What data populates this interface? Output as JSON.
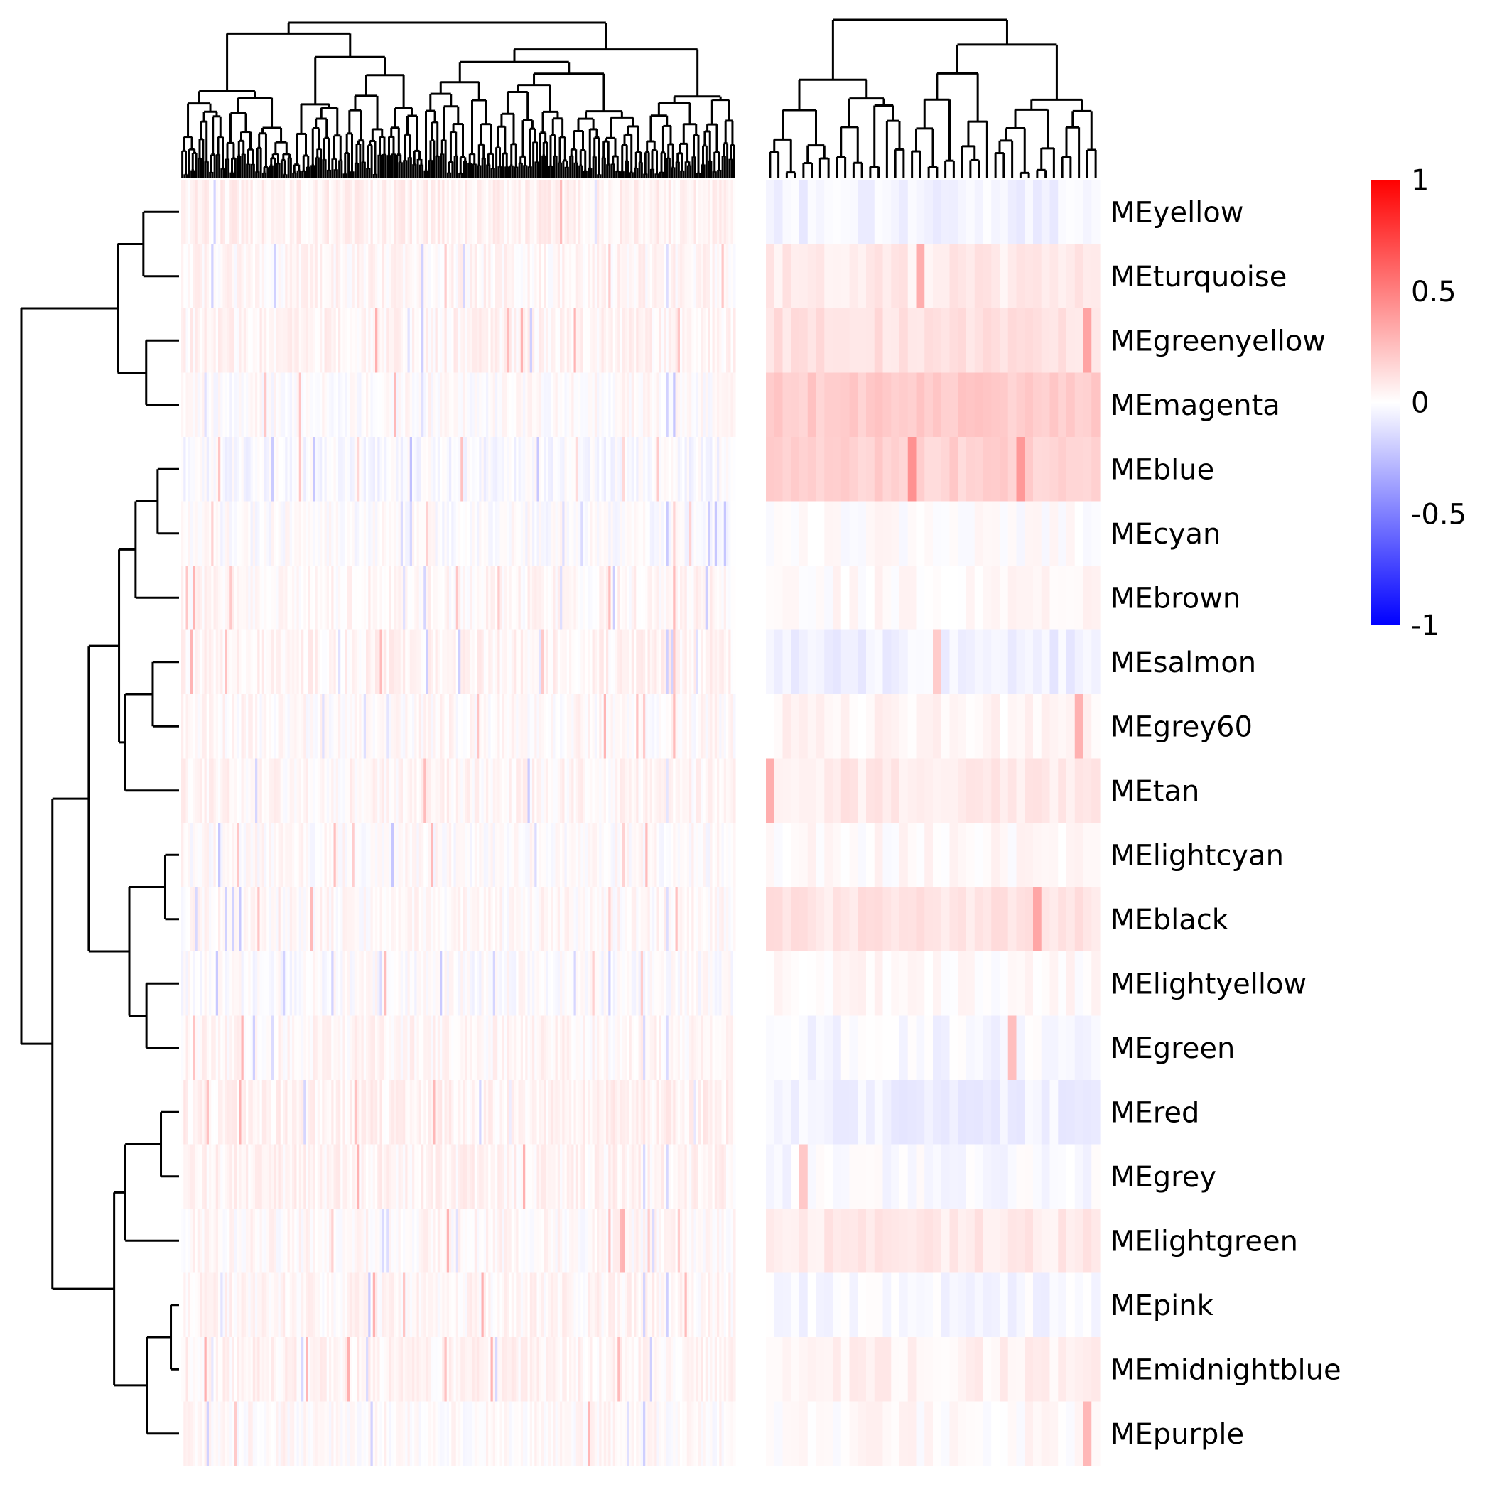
{
  "chart_data": {
    "type": "heatmap",
    "title": "",
    "rows": [
      "MEyellow",
      "MEturquoise",
      "MEgreenyellow",
      "MEmagenta",
      "MEblue",
      "MEcyan",
      "MEbrown",
      "MEsalmon",
      "MEgrey60",
      "MEtan",
      "MElightcyan",
      "MEblack",
      "MElightyellow",
      "MEgreen",
      "MEred",
      "MEgrey",
      "MElightgreen",
      "MEpink",
      "MEmidnightblue",
      "MEpurple"
    ],
    "column_groups": [
      {
        "label": "",
        "n_columns": 240
      },
      {
        "label": "",
        "n_columns": 40
      }
    ],
    "typical_values": [
      {
        "row": "MEyellow",
        "group1": 0.05,
        "group2": -0.05
      },
      {
        "row": "MEturquoise",
        "group1": 0.03,
        "group2": 0.08
      },
      {
        "row": "MEgreenyellow",
        "group1": 0.04,
        "group2": 0.12
      },
      {
        "row": "MEmagenta",
        "group1": 0.01,
        "group2": 0.2
      },
      {
        "row": "MEblue",
        "group1": -0.02,
        "group2": 0.18
      },
      {
        "row": "MEcyan",
        "group1": 0.0,
        "group2": 0.01
      },
      {
        "row": "MEbrown",
        "group1": 0.03,
        "group2": 0.02
      },
      {
        "row": "MEsalmon",
        "group1": 0.04,
        "group2": -0.06
      },
      {
        "row": "MEgrey60",
        "group1": 0.02,
        "group2": 0.04
      },
      {
        "row": "MEtan",
        "group1": 0.03,
        "group2": 0.08
      },
      {
        "row": "MElightcyan",
        "group1": 0.01,
        "group2": 0.02
      },
      {
        "row": "MEblack",
        "group1": 0.02,
        "group2": 0.1
      },
      {
        "row": "MElightyellow",
        "group1": 0.0,
        "group2": 0.02
      },
      {
        "row": "MEgreen",
        "group1": 0.03,
        "group2": -0.03
      },
      {
        "row": "MEred",
        "group1": 0.05,
        "group2": -0.06
      },
      {
        "row": "MEgrey",
        "group1": 0.04,
        "group2": -0.02
      },
      {
        "row": "MElightgreen",
        "group1": 0.02,
        "group2": 0.08
      },
      {
        "row": "MEpink",
        "group1": 0.03,
        "group2": -0.03
      },
      {
        "row": "MEmidnightblue",
        "group1": 0.04,
        "group2": 0.05
      },
      {
        "row": "MEpurple",
        "group1": 0.02,
        "group2": 0.02
      }
    ],
    "color_scale": {
      "min": -1,
      "max": 1,
      "colors": [
        "#0000ff",
        "#ffffff",
        "#ff0000"
      ],
      "ticks": [
        "1",
        "0.5",
        "0",
        "-0.5",
        "-1"
      ]
    },
    "dendrograms": {
      "rows": true,
      "columns": true
    },
    "legend_position": "right"
  }
}
